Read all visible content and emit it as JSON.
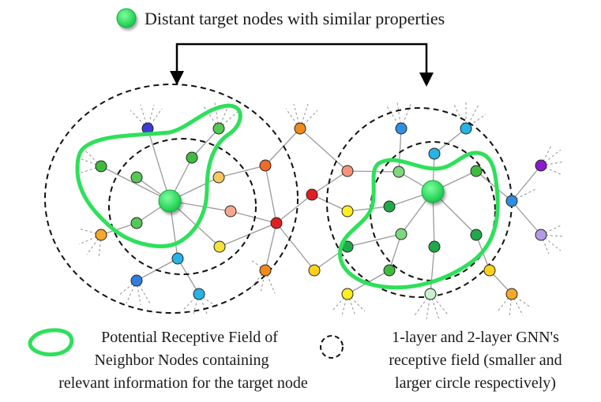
{
  "legend": {
    "target": "Distant target nodes with similar properties",
    "field_line1": "Potential Receptive Field of",
    "field_line2": "Neighbor Nodes containing",
    "field_line3": "relevant information for the target node",
    "gnn_line1": "1-layer and 2-layer GNN's",
    "gnn_line2": "receptive field (smaller and",
    "gnn_line3": "larger circle respectively)"
  },
  "colors": {
    "target_node": "#22dd55",
    "receptive_field": "#2ee05a",
    "edge": "#9a9a9a",
    "ring": "#111111",
    "arrow": "#000000"
  },
  "node_colors": [
    "#3b3bd6",
    "#55c855",
    "#2f7fe0",
    "#27b3e8",
    "#f08a1a",
    "#ff6a1a",
    "#e34a2a",
    "#e02020",
    "#ffee22",
    "#f5a88e",
    "#f5c860",
    "#8b1acc",
    "#b39be8",
    "#c9f0c9",
    "#ffd21a",
    "#f7a94a",
    "#7ed87e",
    "#22a84a",
    "#f6a82a"
  ]
}
